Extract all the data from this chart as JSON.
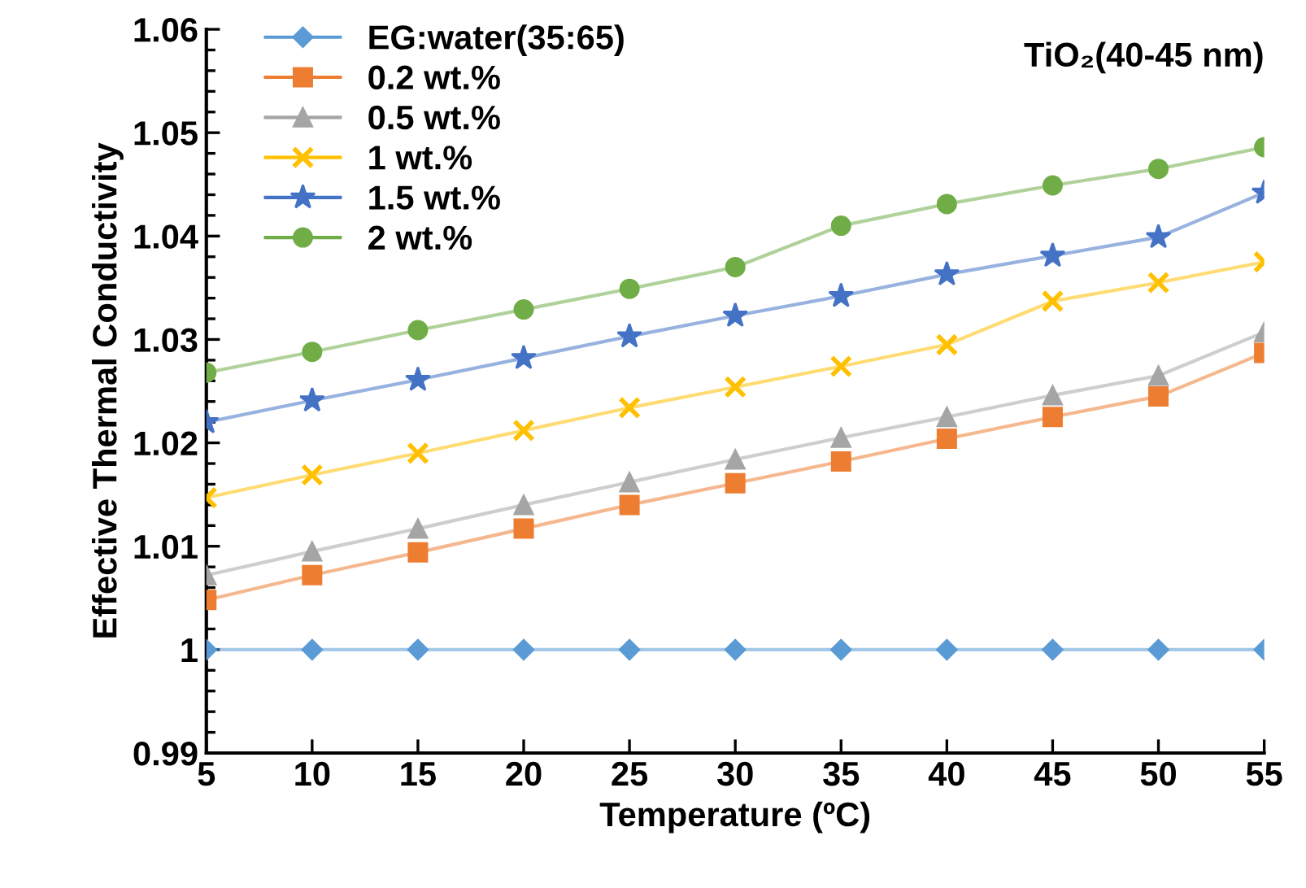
{
  "chart_data": {
    "type": "line",
    "title": "TiO₂(40-45 nm)",
    "xlabel": "Temperature (ºC)",
    "ylabel": "Effective Thermal Conductivity",
    "x": [
      5,
      10,
      15,
      20,
      25,
      30,
      35,
      40,
      45,
      50,
      55
    ],
    "series": [
      {
        "name": "EG:water(35:65)",
        "color": "#5b9bd5",
        "marker": "diamond",
        "values": [
          1,
          1,
          1,
          1,
          1,
          1,
          1,
          1,
          1,
          1,
          1
        ]
      },
      {
        "name": "0.2 wt.%",
        "color": "#ed7d31",
        "marker": "square",
        "values": [
          1.0048,
          1.0072,
          1.0094,
          1.0117,
          1.014,
          1.0161,
          1.0182,
          1.0204,
          1.0225,
          1.0245,
          1.0287
        ]
      },
      {
        "name": "0.5 wt.%",
        "color": "#a5a5a5",
        "marker": "triangle",
        "values": [
          1.0072,
          1.0095,
          1.0117,
          1.014,
          1.0162,
          1.0184,
          1.0205,
          1.0225,
          1.0246,
          1.0265,
          1.0307
        ]
      },
      {
        "name": "1 wt.%",
        "color": "#ffc000",
        "marker": "cross",
        "values": [
          1.0147,
          1.0169,
          1.019,
          1.0212,
          1.0234,
          1.0254,
          1.0274,
          1.0295,
          1.0337,
          1.0355,
          1.0375
        ]
      },
      {
        "name": "1.5 wt.%",
        "color": "#4472c4",
        "marker": "star",
        "values": [
          1.022,
          1.0241,
          1.0261,
          1.0282,
          1.0303,
          1.0323,
          1.0342,
          1.0363,
          1.0381,
          1.0399,
          1.0442
        ]
      },
      {
        "name": "2 wt.%",
        "color": "#70ad47",
        "marker": "circle",
        "values": [
          1.0268,
          1.0288,
          1.0309,
          1.0329,
          1.0349,
          1.037,
          1.041,
          1.0431,
          1.0449,
          1.0465,
          1.0486
        ]
      }
    ],
    "xlim": [
      5,
      55
    ],
    "xticks": [
      5,
      10,
      15,
      20,
      25,
      30,
      35,
      40,
      45,
      50,
      55
    ],
    "ylim": [
      0.99,
      1.06
    ],
    "yticks": [
      0.99,
      1,
      1.01,
      1.02,
      1.03,
      1.04,
      1.05,
      1.06
    ],
    "grid": false,
    "legend": "top left",
    "line_style": "solid"
  }
}
